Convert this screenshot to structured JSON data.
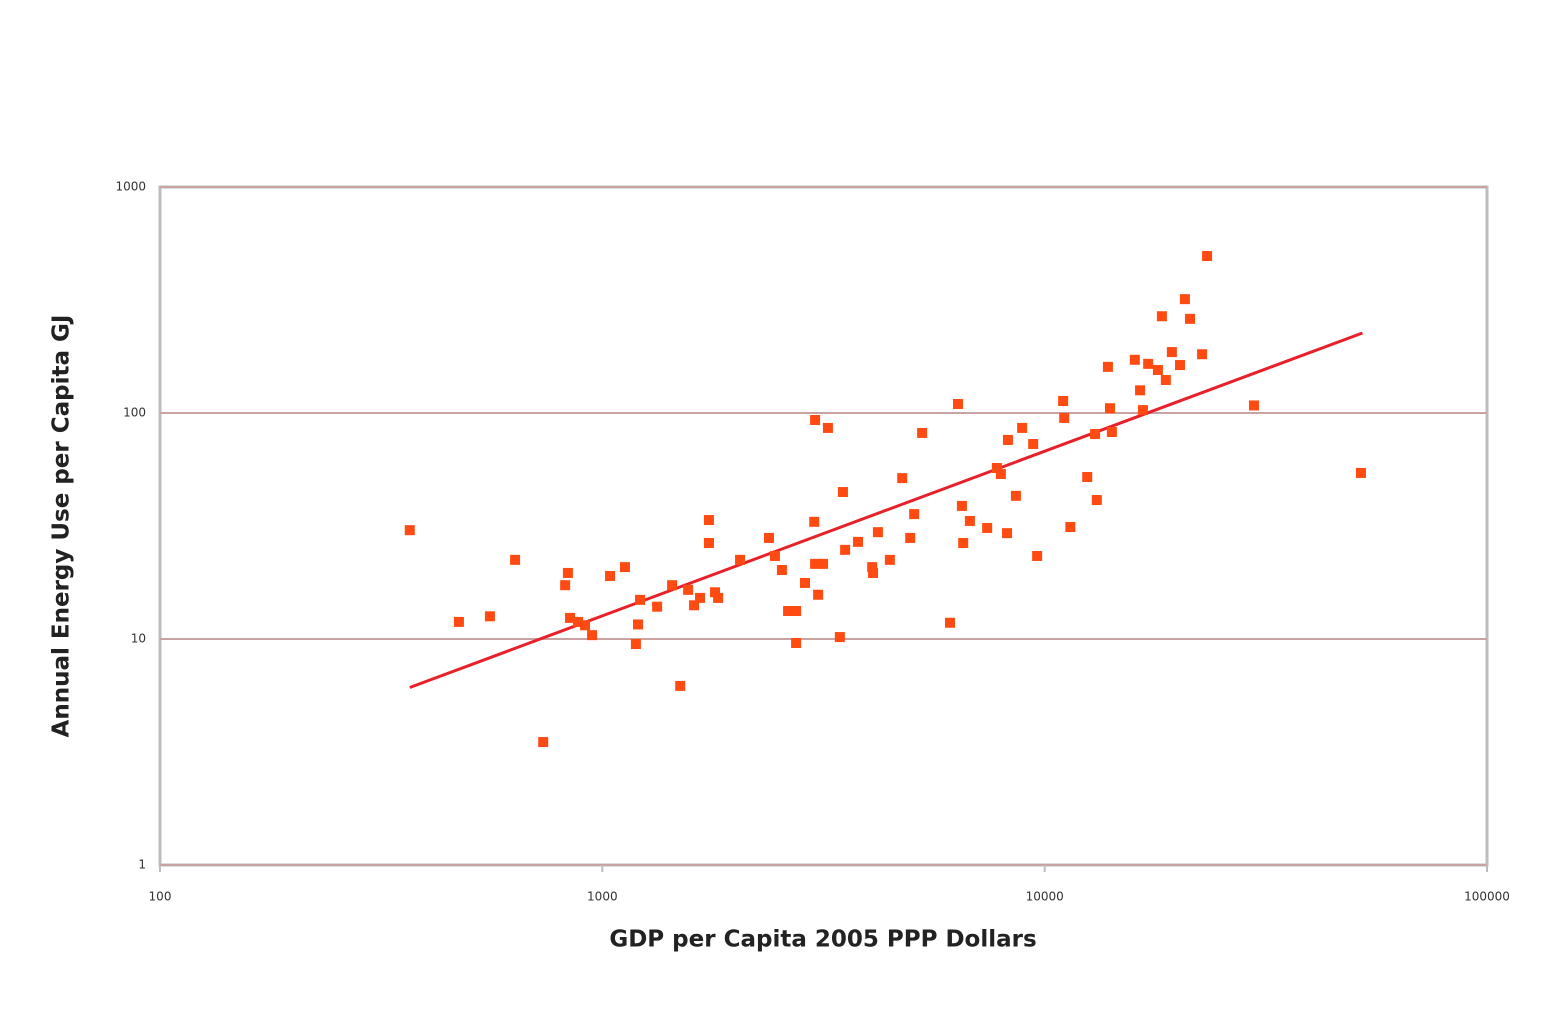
{
  "chart_data": {
    "type": "scatter",
    "xlabel": "GDP per Capita 2005 PPP Dollars",
    "ylabel": "Annual Energy Use per Capita GJ",
    "xscale": "log",
    "yscale": "log",
    "xlim": [
      100,
      100000
    ],
    "ylim": [
      1,
      1000
    ],
    "xticks": [
      100,
      1000,
      10000,
      100000
    ],
    "yticks": [
      1,
      10,
      100,
      1000
    ],
    "grid": true,
    "color": "#ff4a12",
    "x": [
      367,
      474,
      557,
      635,
      735,
      824,
      836,
      845,
      881,
      914,
      948,
      1041,
      1125,
      1191,
      1204,
      1217,
      1330,
      1438,
      1500,
      1563,
      1612,
      1663,
      1742,
      1742,
      1798,
      1827,
      2048,
      2381,
      2456,
      2547,
      2630,
      2742,
      2742,
      2872,
      3013,
      3027,
      3027,
      3075,
      3155,
      3236,
      3443,
      3499,
      3539,
      3784,
      4074,
      4093,
      4198,
      4467,
      4764,
      4966,
      5070,
      5284,
      6109,
      6368,
      6500,
      6544,
      6776,
      7413,
      7798,
      7962,
      8222,
      8260,
      8610,
      8892,
      9419,
      9616,
      11010,
      11070,
      11430,
      12480,
      13000,
      13120,
      13900,
      14050,
      14190,
      15990,
      16430,
      16680,
      17140,
      18030,
      18410,
      18790,
      19390,
      20230,
      20750,
      21310,
      22690,
      23290,
      29730,
      51880
    ],
    "y": [
      30.3,
      11.9,
      12.6,
      22.4,
      3.5,
      17.3,
      19.6,
      12.4,
      11.9,
      11.5,
      10.4,
      19.0,
      20.8,
      9.5,
      11.6,
      14.9,
      13.9,
      17.3,
      6.2,
      16.5,
      14.1,
      15.2,
      33.6,
      26.6,
      16.1,
      15.2,
      22.4,
      28.0,
      23.3,
      20.2,
      13.3,
      13.3,
      9.6,
      17.7,
      33.0,
      93.1,
      21.5,
      15.7,
      21.5,
      85.9,
      10.2,
      44.7,
      24.8,
      26.9,
      20.8,
      19.6,
      29.7,
      22.4,
      51.5,
      28.0,
      35.7,
      81.6,
      11.8,
      109.6,
      38.8,
      26.6,
      33.3,
      31.0,
      57.1,
      53.7,
      29.4,
      76.0,
      43.0,
      85.9,
      72.9,
      23.3,
      113,
      95.1,
      31.3,
      52.1,
      80.7,
      41.2,
      160,
      105,
      82.4,
      172,
      126,
      103,
      165,
      155,
      268,
      140,
      186,
      163,
      319,
      261,
      182,
      495,
      108,
      54.3
    ],
    "trendline": {
      "color": "#e8202a",
      "x": [
        367,
        52300
      ],
      "y": [
        6.1,
        226
      ]
    }
  }
}
